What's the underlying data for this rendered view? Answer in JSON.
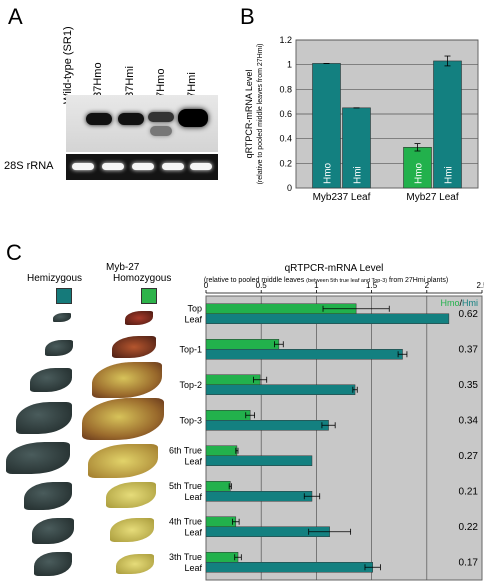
{
  "panels": {
    "a": "A",
    "b": "B",
    "c": "C"
  },
  "blot": {
    "lanes": [
      "Wild-type (SR1)",
      "237Hmo",
      "237Hmi",
      "27Hmo",
      "27Hmi"
    ],
    "rrna_label": "28S rRNA"
  },
  "colors": {
    "hmo": "#22b14c",
    "hmi": "#138080",
    "plot_bg": "#c8c8c8",
    "teal_swatch": "#157a7a",
    "green_swatch": "#2db34a"
  },
  "panel_c_header": {
    "title": "Myb-27",
    "hemizygous": "Hemizygous",
    "homozygous": "Homozygous"
  },
  "chart_data": [
    {
      "type": "bar",
      "ylabel_line1": "qRTPCR-mRNA Level",
      "ylabel_line2": "(relative to pooled middle leaves from 27Hmi)",
      "ylim": [
        0,
        1.2
      ],
      "yticks": [
        "0",
        "0.2",
        "0.4",
        "0.6",
        "0.8",
        "1",
        "1.2"
      ],
      "grid": true,
      "categories": [
        "Myb237 Leaf",
        "Myb27 Leaf"
      ],
      "series": [
        {
          "name": "Hmo",
          "values": [
            1.01,
            0.33
          ],
          "errors": [
            0.0,
            0.03
          ],
          "colors": [
            "#138080",
            "#22b14c"
          ]
        },
        {
          "name": "Hmi",
          "values": [
            0.65,
            1.03
          ],
          "errors": [
            0.0,
            0.04
          ],
          "colors": [
            "#138080",
            "#138080"
          ]
        }
      ]
    },
    {
      "type": "bar",
      "orientation": "horizontal",
      "title": "qRTPCR-mRNA Level",
      "subtitle_pre": "(relative to pooled middle leaves ",
      "subtitle_small": "(between 5th true leaf and Top-3)",
      "subtitle_post": " from 27Hmi plants)",
      "xlim": [
        0,
        2.5
      ],
      "xticks": [
        "0",
        "0.5",
        "1",
        "1.5",
        "2",
        "2.5"
      ],
      "legend": {
        "hmo": "Hmo",
        "sep": "/",
        "hmi": "Hmi"
      },
      "categories": [
        [
          "Top",
          "Leaf"
        ],
        [
          "Top-1"
        ],
        [
          "Top-2"
        ],
        [
          "Top-3"
        ],
        [
          "6th True",
          "Leaf"
        ],
        [
          "5th True",
          "Leaf"
        ],
        [
          "4th True",
          "Leaf"
        ],
        [
          "3th True",
          "Leaf"
        ]
      ],
      "series": [
        {
          "name": "Hmo",
          "values": [
            1.36,
            0.66,
            0.49,
            0.4,
            0.28,
            0.22,
            0.27,
            0.29
          ],
          "errors": [
            0.3,
            0.04,
            0.06,
            0.04,
            0.01,
            0.01,
            0.03,
            0.03
          ]
        },
        {
          "name": "Hmi",
          "values": [
            2.2,
            1.78,
            1.35,
            1.11,
            0.96,
            0.96,
            1.12,
            1.51
          ],
          "errors": [
            0.0,
            0.04,
            0.02,
            0.06,
            0.0,
            0.07,
            0.19,
            0.07
          ]
        }
      ],
      "ratios": [
        "0.62",
        "0.37",
        "0.35",
        "0.34",
        "0.27",
        "0.21",
        "0.22",
        "0.17"
      ]
    }
  ]
}
